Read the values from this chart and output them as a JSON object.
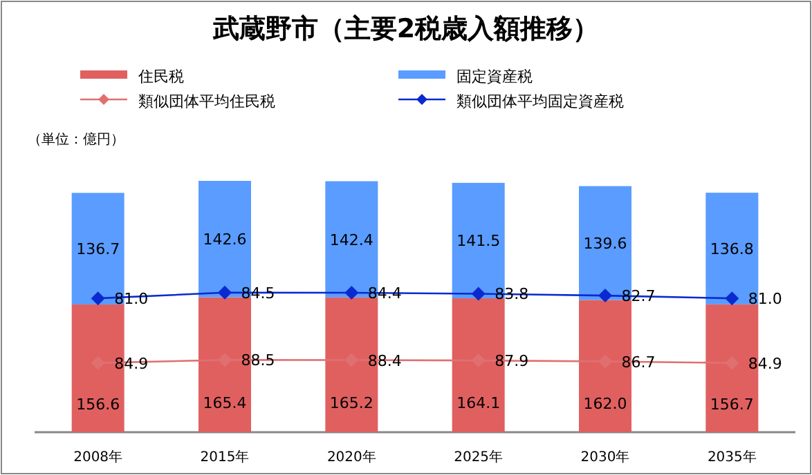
{
  "chart_data": {
    "type": "bar",
    "title": "武蔵野市（主要2税歳入額推移）",
    "annotations": [
      "（単位：億円）"
    ],
    "categories": [
      "2008年",
      "2015年",
      "2020年",
      "2025年",
      "2030年",
      "2035年"
    ],
    "stacked": true,
    "legend": "top",
    "marker": "diamond",
    "series": [
      {
        "name": "住民税",
        "color": "#e06060",
        "values": [
          156.6,
          165.4,
          165.2,
          164.1,
          162.0,
          156.7
        ],
        "value_labels": [
          "156.6",
          "165.4",
          "165.2",
          "164.1",
          "162.0",
          "156.7"
        ]
      },
      {
        "name": "固定資産税",
        "color": "#5a9cff",
        "values": [
          136.7,
          142.6,
          142.4,
          141.5,
          139.6,
          136.8
        ],
        "value_labels": [
          "136.7",
          "142.6",
          "142.4",
          "141.5",
          "139.6",
          "136.8"
        ]
      },
      {
        "name": "類似団体平均住民税",
        "type": "line",
        "color": "#e07070",
        "values": [
          84.9,
          88.5,
          88.4,
          87.9,
          86.7,
          84.9
        ],
        "value_labels": [
          "84.9",
          "88.5",
          "88.4",
          "87.9",
          "86.7",
          "84.9"
        ]
      },
      {
        "name": "類似団体平均固定資産税",
        "type": "line",
        "axis": "y2",
        "color": "#0a2ad0",
        "values": [
          81.0,
          84.5,
          84.4,
          83.8,
          82.7,
          81.0
        ],
        "value_labels": [
          "81.0",
          "84.5",
          "84.4",
          "83.8",
          "82.7",
          "81.0"
        ]
      }
    ]
  }
}
